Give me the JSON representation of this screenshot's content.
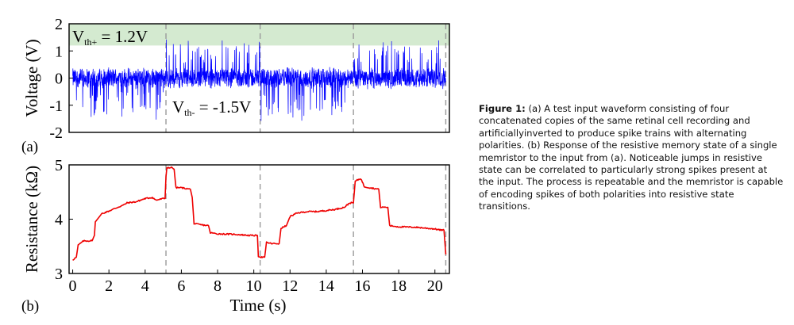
{
  "caption": {
    "label": "Figure 1:",
    "text": " (a) A test input waveform consisting of four concatenated copies of the same retinal cell recording and artificiallyinverted to produce spike trains with alternating polarities. (b) Response of the resistive memory state of a single memristor to the input from (a). Noticeable jumps in resistive state can be correlated to particularly strong spikes present at the input. The process is repeatable and the memristor is capable of encoding spikes of both polarities into resistive state transitions."
  },
  "chart_data": [
    {
      "type": "line",
      "panel_label": "(a)",
      "ylabel": "Voltage (V)",
      "xlabel": "",
      "xlim": [
        -0.2,
        20.8
      ],
      "ylim": [
        -2,
        2
      ],
      "yticks": [
        "2",
        "1",
        "0",
        "-1",
        "-2"
      ],
      "ytick_values": [
        2,
        1,
        0,
        -1,
        -2
      ],
      "grid": false,
      "line_color": "#0000ff",
      "bands": [
        {
          "from": 1.2,
          "to": 2.0,
          "color": "#d4ead0",
          "label_main": "V",
          "label_sub": "th+",
          "label_value": " = 1.2V"
        },
        {
          "from": -2.0,
          "to": -1.5,
          "color": "#f6d2d2",
          "label_main": "V",
          "label_sub": "th-",
          "label_value": " = -1.5V"
        }
      ],
      "dividers_x": [
        5.15,
        10.35,
        15.5,
        20.6
      ],
      "segments": [
        {
          "from": 0,
          "to": 5.15,
          "polarity": "negative",
          "noise_amplitude": 0.38,
          "max_spike": -1.75
        },
        {
          "from": 5.15,
          "to": 10.35,
          "polarity": "positive",
          "noise_amplitude": 0.38,
          "max_spike": 1.5
        },
        {
          "from": 10.35,
          "to": 15.5,
          "polarity": "negative",
          "noise_amplitude": 0.38,
          "max_spike": -1.75
        },
        {
          "from": 15.5,
          "to": 20.6,
          "polarity": "positive",
          "noise_amplitude": 0.38,
          "max_spike": 1.45
        }
      ]
    },
    {
      "type": "line",
      "panel_label": "(b)",
      "ylabel": "Resistance (kΩ)",
      "xlabel": "Time (s)",
      "xlim": [
        -0.2,
        20.8
      ],
      "ylim": [
        3,
        5
      ],
      "xticks": [
        "0",
        "2",
        "4",
        "6",
        "8",
        "10",
        "12",
        "14",
        "16",
        "18",
        "20"
      ],
      "xtick_values": [
        0,
        2,
        4,
        6,
        8,
        10,
        12,
        14,
        16,
        18,
        20
      ],
      "yticks": [
        "5",
        "4",
        "3"
      ],
      "ytick_values": [
        5,
        4,
        3
      ],
      "grid": false,
      "line_color": "#ee0000",
      "dividers_x": [
        5.15,
        10.35,
        15.5,
        20.6
      ],
      "x": [
        0,
        0.2,
        0.3,
        0.6,
        1.0,
        1.1,
        1.2,
        1.25,
        1.6,
        2.0,
        2.5,
        2.8,
        3.0,
        3.5,
        4.0,
        4.4,
        4.6,
        5.0,
        5.1,
        5.15,
        5.2,
        5.5,
        5.6,
        5.7,
        6.0,
        6.5,
        6.6,
        6.7,
        7.0,
        7.5,
        7.6,
        8.0,
        9.0,
        9.8,
        10.2,
        10.25,
        10.4,
        10.6,
        10.7,
        11.0,
        11.4,
        11.5,
        11.6,
        11.8,
        12.0,
        12.2,
        12.3,
        12.5,
        13.0,
        13.5,
        14.0,
        14.5,
        15.0,
        15.3,
        15.5,
        15.55,
        15.6,
        15.9,
        16.0,
        16.1,
        16.4,
        16.9,
        17.0,
        17.4,
        17.5,
        18.0,
        19.0,
        20.0,
        20.3,
        20.5,
        20.6
      ],
      "y": [
        3.25,
        3.3,
        3.52,
        3.6,
        3.6,
        3.62,
        3.7,
        3.95,
        4.1,
        4.15,
        4.22,
        4.26,
        4.3,
        4.32,
        4.38,
        4.4,
        4.35,
        4.38,
        4.38,
        4.78,
        4.95,
        4.95,
        4.92,
        4.58,
        4.58,
        4.55,
        4.4,
        3.92,
        3.9,
        3.88,
        3.75,
        3.73,
        3.72,
        3.7,
        3.7,
        3.32,
        3.3,
        3.3,
        3.57,
        3.55,
        3.55,
        3.82,
        3.85,
        3.88,
        4.05,
        4.08,
        4.1,
        4.12,
        4.14,
        4.14,
        4.16,
        4.18,
        4.22,
        4.3,
        4.3,
        4.5,
        4.7,
        4.75,
        4.68,
        4.6,
        4.58,
        4.55,
        4.22,
        4.22,
        3.88,
        3.86,
        3.85,
        3.82,
        3.8,
        3.8,
        3.35
      ]
    }
  ]
}
